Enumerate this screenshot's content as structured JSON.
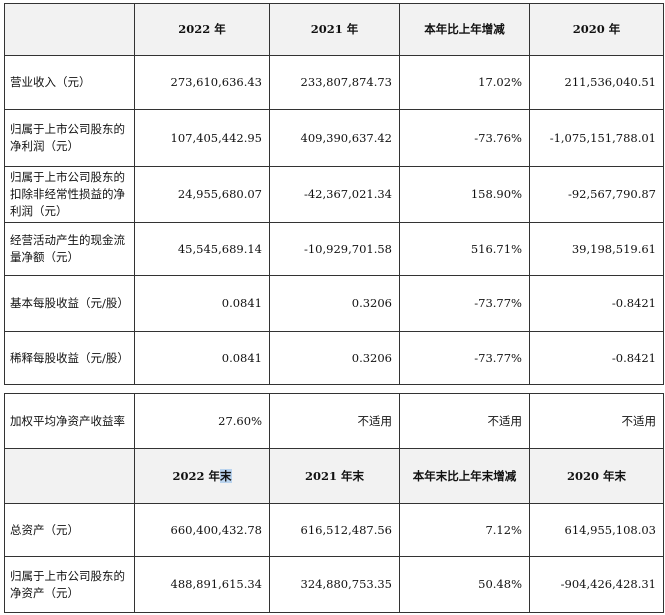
{
  "table1": {
    "headers": [
      "",
      "2022 年",
      "2021 年",
      "本年比上年增减",
      "2020 年"
    ],
    "rows": [
      {
        "label": "营业收入（元）",
        "values": [
          "273,610,636.43",
          "233,807,874.73",
          "17.02%",
          "211,536,040.51"
        ]
      },
      {
        "label": "归属于上市公司股东的净利润（元）",
        "values": [
          "107,405,442.95",
          "409,390,637.42",
          "-73.76%",
          "-1,075,151,788.01"
        ]
      },
      {
        "label": "归属于上市公司股东的扣除非经常性损益的净利润（元）",
        "values": [
          "24,955,680.07",
          "-42,367,021.34",
          "158.90%",
          "-92,567,790.87"
        ]
      },
      {
        "label": "经营活动产生的现金流量净额（元）",
        "values": [
          "45,545,689.14",
          "-10,929,701.58",
          "516.71%",
          "39,198,519.61"
        ]
      },
      {
        "label": "基本每股收益（元/股）",
        "values": [
          "0.0841",
          "0.3206",
          "-73.77%",
          "-0.8421"
        ]
      },
      {
        "label": "稀释每股收益（元/股）",
        "values": [
          "0.0841",
          "0.3206",
          "-73.77%",
          "-0.8421"
        ]
      }
    ]
  },
  "table2": {
    "roe_row": {
      "label": "加权平均净资产收益率",
      "values": [
        "27.60%",
        "不适用",
        "不适用",
        "不适用"
      ]
    },
    "headers": {
      "c1_main": "2022 年",
      "c1_hl": "末",
      "c2": "2021 年末",
      "c3": "本年末比上年末增减",
      "c4": "2020 年末"
    },
    "rows": [
      {
        "label": "总资产（元）",
        "values": [
          "660,400,432.78",
          "616,512,487.56",
          "7.12%",
          "614,955,108.03"
        ]
      },
      {
        "label": "归属于上市公司股东的净资产（元）",
        "values": [
          "488,891,615.34",
          "324,880,753.35",
          "50.48%",
          "-904,426,428.31"
        ]
      }
    ]
  }
}
